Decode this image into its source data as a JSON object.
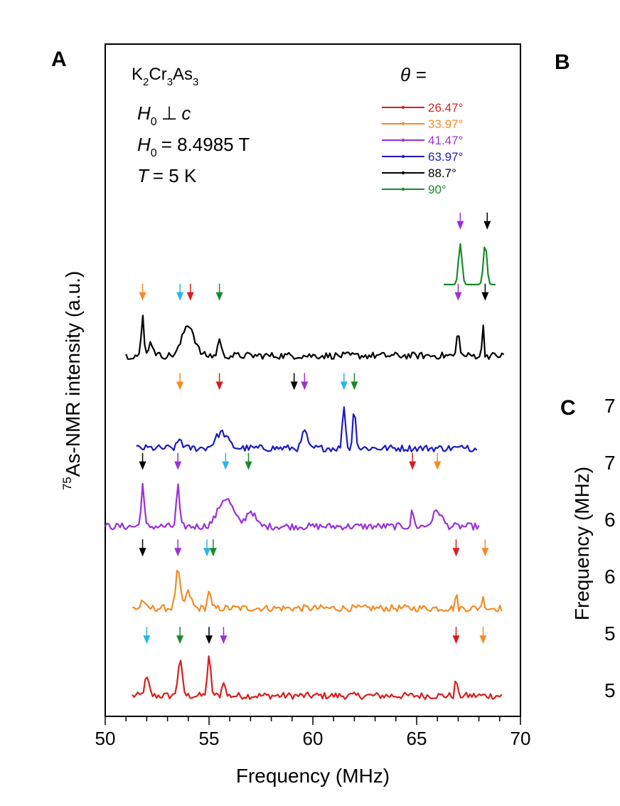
{
  "panel_labels": {
    "a": "A",
    "b": "B",
    "c": "C"
  },
  "annotations": {
    "compound": {
      "parts": [
        "K",
        "2",
        "Cr",
        "3",
        "As",
        "3"
      ]
    },
    "field_dir": {
      "h": "H",
      "sub": "0",
      "rel": "⊥",
      "c": "c"
    },
    "field_val": {
      "h": "H",
      "sub": "0",
      "eq": "= 8.4985 T"
    },
    "temp": {
      "t": "T",
      "eq": "= 5 K"
    },
    "theta_label": "θ ="
  },
  "chart_data": {
    "type": "line",
    "xlabel": "Frequency (MHz)",
    "ylabel_sup": "75",
    "ylabel": "As-NMR intensity (a.u.)",
    "xlim": [
      50,
      70
    ],
    "xticks": [
      "50",
      "55",
      "60",
      "65",
      "70"
    ],
    "legend_placement": "top-right",
    "series": [
      {
        "name": "26.47°",
        "color": "#d91e1e",
        "x_range": [
          51.3,
          69.1
        ],
        "baseline": 0.0,
        "offset": 0,
        "peaks": [
          [
            52.0,
            0.55,
            0.15
          ],
          [
            53.6,
            1.1,
            0.15
          ],
          [
            55.0,
            1.2,
            0.12
          ],
          [
            55.7,
            0.5,
            0.1
          ],
          [
            66.9,
            0.7,
            0.06
          ]
        ],
        "arrows": [
          [
            52.0,
            "#29b6e8"
          ],
          [
            53.6,
            "#1a8a2a"
          ],
          [
            55.0,
            "#000000"
          ],
          [
            55.7,
            "#9b30d9"
          ],
          [
            66.9,
            "#d91e1e"
          ],
          [
            68.2,
            "#f28c28"
          ]
        ]
      },
      {
        "name": "33.97°",
        "color": "#f28c28",
        "x_range": [
          51.3,
          69.1
        ],
        "baseline": 0.0,
        "offset": 1,
        "peaks": [
          [
            51.8,
            0.3,
            0.1
          ],
          [
            53.5,
            1.2,
            0.15
          ],
          [
            54.0,
            0.5,
            0.2
          ],
          [
            55.0,
            0.6,
            0.1
          ],
          [
            66.9,
            0.55,
            0.06
          ],
          [
            68.2,
            0.3,
            0.1
          ]
        ],
        "arrows": [
          [
            51.8,
            "#000000"
          ],
          [
            53.5,
            "#9b30d9"
          ],
          [
            54.9,
            "#29b6e8"
          ],
          [
            55.2,
            "#1a8a2a"
          ],
          [
            66.9,
            "#d91e1e"
          ],
          [
            68.3,
            "#f28c28"
          ]
        ]
      },
      {
        "name": "41.47°",
        "color": "#9b30d9",
        "x_range": [
          50.0,
          68.0
        ],
        "baseline": 0.0,
        "offset": 2,
        "peaks": [
          [
            51.8,
            1.35,
            0.1
          ],
          [
            53.5,
            1.35,
            0.1
          ],
          [
            55.8,
            0.9,
            0.5
          ],
          [
            57.0,
            0.5,
            0.3
          ],
          [
            64.8,
            0.55,
            0.08
          ],
          [
            66.0,
            0.5,
            0.3
          ]
        ],
        "arrows": [
          [
            51.8,
            "#000000"
          ],
          [
            53.5,
            "#9b30d9"
          ],
          [
            55.8,
            "#29b6e8"
          ],
          [
            56.9,
            "#1a8a2a"
          ],
          [
            64.8,
            "#d91e1e"
          ],
          [
            66.0,
            "#f28c28"
          ]
        ]
      },
      {
        "name": "63.97°",
        "color": "#1b1bc4",
        "x_range": [
          51.5,
          67.9
        ],
        "baseline": 0.0,
        "offset": 3,
        "peaks": [
          [
            53.6,
            0.3,
            0.15
          ],
          [
            55.6,
            0.5,
            0.4
          ],
          [
            59.6,
            0.6,
            0.15
          ],
          [
            61.5,
            1.4,
            0.1
          ],
          [
            62.0,
            1.3,
            0.1
          ],
          [
            67.4,
            0.2,
            0.05
          ]
        ],
        "arrows": [
          [
            53.6,
            "#f28c28"
          ],
          [
            55.5,
            "#d91e1e"
          ],
          [
            59.1,
            "#000000"
          ],
          [
            59.6,
            "#9b30d9"
          ],
          [
            61.5,
            "#29b6e8"
          ],
          [
            62.0,
            "#1a8a2a"
          ]
        ]
      },
      {
        "name": "88.7°",
        "color": "#000000",
        "x_range": [
          51.0,
          69.2
        ],
        "baseline": 0.0,
        "offset": 4,
        "peaks": [
          [
            51.8,
            1.3,
            0.08
          ],
          [
            52.2,
            0.4,
            0.2
          ],
          [
            54.0,
            1.0,
            0.4
          ],
          [
            55.5,
            0.6,
            0.1
          ],
          [
            67.0,
            0.9,
            0.08
          ],
          [
            68.2,
            1.0,
            0.06
          ]
        ],
        "arrows": [
          [
            51.8,
            "#f28c28"
          ],
          [
            53.6,
            "#29b6e8"
          ],
          [
            54.1,
            "#d91e1e"
          ],
          [
            55.5,
            "#1a8a2a"
          ],
          [
            67.0,
            "#9b30d9"
          ],
          [
            68.3,
            "#000000"
          ]
        ]
      },
      {
        "name": "90°",
        "color": "#1a8a2a",
        "x_range": [
          66.3,
          68.8
        ],
        "baseline": 0.0,
        "offset": 5,
        "peaks": [
          [
            67.1,
            1.3,
            0.12
          ],
          [
            68.3,
            1.3,
            0.12
          ]
        ],
        "arrows": [
          [
            67.1,
            "#9b30d9"
          ],
          [
            68.4,
            "#000000"
          ]
        ]
      }
    ]
  },
  "panel_c": {
    "ylabel": "Frequency (MHz)",
    "tick_fragments": [
      "7",
      "7",
      "6",
      "6",
      "5",
      "5"
    ]
  }
}
